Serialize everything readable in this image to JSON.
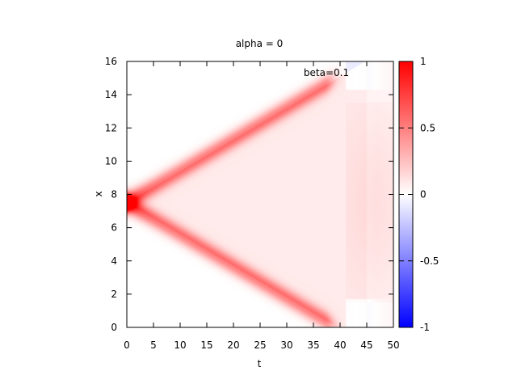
{
  "chart_data": {
    "type": "heatmap",
    "title": "alpha = 0",
    "annotation": "beta=0.1",
    "xlabel": "t",
    "ylabel": "x",
    "xlim": [
      0,
      50
    ],
    "ylim": [
      0,
      16
    ],
    "x_ticks": [
      "0",
      "5",
      "10",
      "15",
      "20",
      "25",
      "30",
      "35",
      "40",
      "45",
      "50"
    ],
    "y_ticks": [
      "0",
      "2",
      "4",
      "6",
      "8",
      "10",
      "12",
      "14",
      "16"
    ],
    "colorbar": {
      "range": [
        -1,
        1
      ],
      "ticks": [
        "1",
        "0.5",
        "0",
        "-0.5",
        "-1"
      ],
      "colormap": [
        "#0000ff",
        "#ffffff",
        "#ff0000"
      ]
    },
    "field": {
      "peak_value": 1.0,
      "peak_t": 0,
      "peak_x": 7.5,
      "front_speed": 0.19,
      "front_end_t": 37,
      "front_value": 0.5,
      "interior_value": 0.08,
      "negative_value": -0.08,
      "description_series": [
        {
          "t": 0,
          "x_upper_front": 7.5,
          "x_lower_front": 7.5
        },
        {
          "t": 10,
          "x_upper_front": 9.4,
          "x_lower_front": 5.6
        },
        {
          "t": 20,
          "x_upper_front": 11.3,
          "x_lower_front": 3.7
        },
        {
          "t": 30,
          "x_upper_front": 13.2,
          "x_lower_front": 1.8
        },
        {
          "t": 37,
          "x_upper_front": 14.5,
          "x_lower_front": 0.5
        }
      ]
    }
  }
}
